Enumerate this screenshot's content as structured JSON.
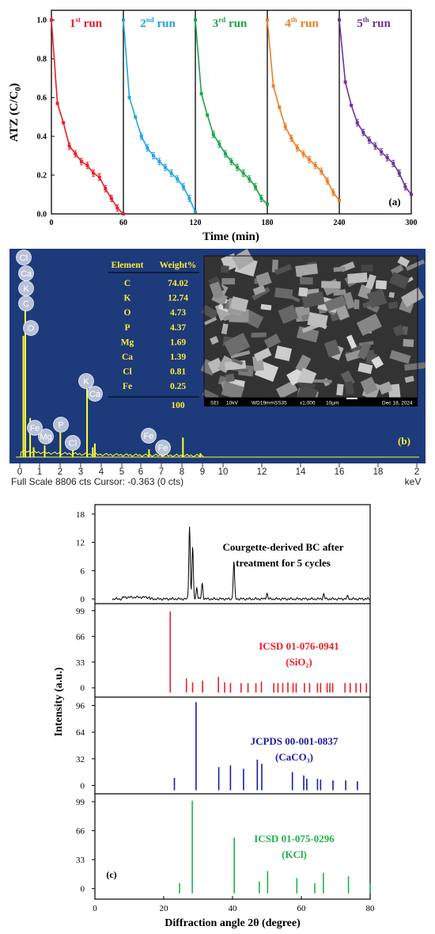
{
  "chart_data": [
    {
      "type": "line",
      "panel": "(a)",
      "xlabel": "Time (min)",
      "ylabel": "ATZ (C/C",
      "ylabel_sub": "0",
      "ylabel_close": ")",
      "xlim": [
        0,
        300
      ],
      "ylim": [
        0,
        1.05
      ],
      "xticks": [
        "0",
        "60",
        "120",
        "180",
        "240",
        "300"
      ],
      "yticks": [
        "0.0",
        "0.2",
        "0.4",
        "0.6",
        "0.8",
        "1.0"
      ],
      "runs": [
        {
          "num": "1",
          "sup": "st",
          "word": "run",
          "color": "#ee1c25"
        },
        {
          "num": "2",
          "sup": "nd",
          "word": "run",
          "color": "#1fa7e1"
        },
        {
          "num": "3",
          "sup": "rd",
          "word": "run",
          "color": "#1aa54a"
        },
        {
          "num": "4",
          "sup": "th",
          "word": "run",
          "color": "#f07d22"
        },
        {
          "num": "5",
          "sup": "th",
          "word": "run",
          "color": "#7030a0"
        }
      ],
      "series": [
        {
          "name": "1st run",
          "x": [
            0,
            5,
            10,
            15,
            20,
            25,
            30,
            35,
            40,
            45,
            50,
            55,
            60
          ],
          "y": [
            1.0,
            0.57,
            0.47,
            0.35,
            0.31,
            0.27,
            0.25,
            0.21,
            0.19,
            0.13,
            0.08,
            0.03,
            0.0
          ]
        },
        {
          "name": "2nd run",
          "x": [
            60,
            65,
            70,
            75,
            80,
            85,
            90,
            95,
            100,
            105,
            110,
            115,
            120
          ],
          "y": [
            1.0,
            0.6,
            0.5,
            0.4,
            0.34,
            0.3,
            0.27,
            0.24,
            0.21,
            0.18,
            0.14,
            0.08,
            0.01
          ]
        },
        {
          "name": "3rd run",
          "x": [
            120,
            125,
            130,
            135,
            140,
            145,
            150,
            155,
            160,
            165,
            170,
            175,
            180
          ],
          "y": [
            1.0,
            0.62,
            0.51,
            0.41,
            0.36,
            0.31,
            0.27,
            0.24,
            0.21,
            0.18,
            0.14,
            0.08,
            0.05
          ]
        },
        {
          "name": "4th run",
          "x": [
            180,
            185,
            190,
            195,
            200,
            205,
            210,
            215,
            220,
            225,
            230,
            235,
            240
          ],
          "y": [
            1.0,
            0.66,
            0.55,
            0.45,
            0.39,
            0.34,
            0.31,
            0.28,
            0.25,
            0.22,
            0.17,
            0.11,
            0.07
          ]
        },
        {
          "name": "5th run",
          "x": [
            240,
            245,
            250,
            255,
            260,
            265,
            270,
            275,
            280,
            285,
            290,
            295,
            300
          ],
          "y": [
            1.0,
            0.68,
            0.56,
            0.47,
            0.42,
            0.38,
            0.35,
            0.32,
            0.29,
            0.26,
            0.21,
            0.14,
            0.1
          ]
        }
      ]
    },
    {
      "type": "bar",
      "panel": "(b)",
      "xlabel": "keV",
      "xlim": [
        0,
        20
      ],
      "xticks": [
        "0",
        "1",
        "2",
        "3",
        "4",
        "5",
        "6",
        "7",
        "8",
        "9",
        "10",
        "12",
        "14",
        "16",
        "18",
        "2"
      ],
      "status": "Full Scale 8806 cts Cursor: -0.363  (0 cts)",
      "table": {
        "headers": [
          "Element",
          "Weight%"
        ],
        "rows": [
          [
            "C",
            "74.02"
          ],
          [
            "K",
            "12.74"
          ],
          [
            "O",
            "4.73"
          ],
          [
            "P",
            "4.37"
          ],
          [
            "Mg",
            "1.69"
          ],
          [
            "Ca",
            "1.39"
          ],
          [
            "Cl",
            "0.81"
          ],
          [
            "Fe",
            "0.25"
          ]
        ],
        "total": "100"
      },
      "sem_caption": [
        "SEI",
        "10kV",
        "WD19mmSS35",
        "x1,000",
        "10μm",
        "Dec 18, 2024"
      ],
      "peak_labels": [
        "Cl",
        "Ca",
        "K",
        "C",
        "O",
        "Mg",
        "Fe",
        "P",
        "Cl",
        "K",
        "Ca",
        "Fe",
        "Fe"
      ],
      "peaks": [
        {
          "x": 0.18,
          "h": 0.62
        },
        {
          "x": 0.277,
          "h": 0.78
        },
        {
          "x": 0.525,
          "h": 0.2
        },
        {
          "x": 0.7,
          "h": 0.05
        },
        {
          "x": 1.25,
          "h": 0.06
        },
        {
          "x": 2.01,
          "h": 0.13
        },
        {
          "x": 2.62,
          "h": 0.04
        },
        {
          "x": 3.31,
          "h": 0.42
        },
        {
          "x": 3.59,
          "h": 0.05
        },
        {
          "x": 3.69,
          "h": 0.07
        },
        {
          "x": 6.4,
          "h": 0.04
        },
        {
          "x": 7.06,
          "h": 0.03
        },
        {
          "x": 8.05,
          "h": 0.1
        },
        {
          "x": 8.9,
          "h": 0.02
        }
      ]
    },
    {
      "type": "bar",
      "panel": "(c)",
      "xlabel": "Diffraction angle 2θ (degree)",
      "ylabel": "Intensity (a.u.)",
      "xlim": [
        0,
        80
      ],
      "xticks": [
        "0",
        "20",
        "40",
        "60",
        "80"
      ],
      "subplots": [
        {
          "label_lines": [
            "Courgette-derived BC after",
            "treatment for 5 cycles"
          ],
          "color": "#000000",
          "yticks": [
            "0",
            "6",
            "12",
            "18"
          ],
          "ylim": [
            -1,
            20
          ],
          "pattern_peaks": [
            [
              27.5,
              15.5
            ],
            [
              28.4,
              11.0
            ],
            [
              29.6,
              2.4
            ],
            [
              31.2,
              3.3
            ],
            [
              40.4,
              8.0
            ],
            [
              50.0,
              1.2
            ],
            [
              66.5,
              1.0
            ],
            [
              73.5,
              0.6
            ]
          ]
        },
        {
          "label_lines": [
            "ICSD 01-076-0941",
            "(SiO₂)"
          ],
          "color": "#ee1c25",
          "yticks": [
            "0",
            "33",
            "66",
            "99"
          ],
          "ylim": [
            -12,
            108
          ],
          "sticks": [
            [
              21.9,
              98
            ],
            [
              26.6,
              12
            ],
            [
              28.4,
              7
            ],
            [
              31.3,
              9
            ],
            [
              35.9,
              14
            ],
            [
              37.7,
              7
            ],
            [
              39.4,
              6
            ],
            [
              42.5,
              6
            ],
            [
              44.5,
              6
            ],
            [
              46.8,
              6
            ],
            [
              48.4,
              8
            ],
            [
              52.0,
              6
            ],
            [
              53.2,
              6
            ],
            [
              54.6,
              6
            ],
            [
              56.1,
              7
            ],
            [
              57.6,
              6
            ],
            [
              58.5,
              6
            ],
            [
              60.9,
              6
            ],
            [
              62.4,
              6
            ],
            [
              64.7,
              6
            ],
            [
              65.6,
              6
            ],
            [
              67.5,
              6
            ],
            [
              68.3,
              6
            ],
            [
              69.1,
              6
            ],
            [
              72.7,
              6
            ],
            [
              74.2,
              6
            ],
            [
              75.9,
              6
            ],
            [
              77.2,
              6
            ],
            [
              78.9,
              6
            ]
          ]
        },
        {
          "label_lines": [
            "JCPDS 00-001-0837",
            "(CaCO₃)"
          ],
          "color": "#1a1aa8",
          "yticks": [
            "0",
            "32",
            "64",
            "96"
          ],
          "ylim": [
            -10,
            106
          ],
          "sticks": [
            [
              23.1,
              9
            ],
            [
              29.4,
              100
            ],
            [
              36.0,
              22
            ],
            [
              39.4,
              24
            ],
            [
              43.2,
              20
            ],
            [
              47.2,
              31
            ],
            [
              48.5,
              26
            ],
            [
              57.4,
              16
            ],
            [
              60.7,
              12
            ],
            [
              61.6,
              8
            ],
            [
              64.7,
              8
            ],
            [
              65.6,
              7
            ],
            [
              69.2,
              6
            ],
            [
              72.9,
              6
            ],
            [
              76.3,
              5
            ]
          ]
        },
        {
          "label_lines": [
            "ICSD 01-075-0296",
            "(KCl)"
          ],
          "color": "#1fb24a",
          "yticks": [
            "0",
            "33",
            "66",
            "99"
          ],
          "ylim": [
            -12,
            108
          ],
          "sticks": [
            [
              24.6,
              6
            ],
            [
              28.3,
              100
            ],
            [
              40.5,
              58
            ],
            [
              47.8,
              8
            ],
            [
              50.2,
              20
            ],
            [
              58.7,
              12
            ],
            [
              63.9,
              6
            ],
            [
              66.4,
              18
            ],
            [
              73.7,
              14
            ],
            [
              80.0,
              6
            ]
          ]
        }
      ]
    }
  ]
}
